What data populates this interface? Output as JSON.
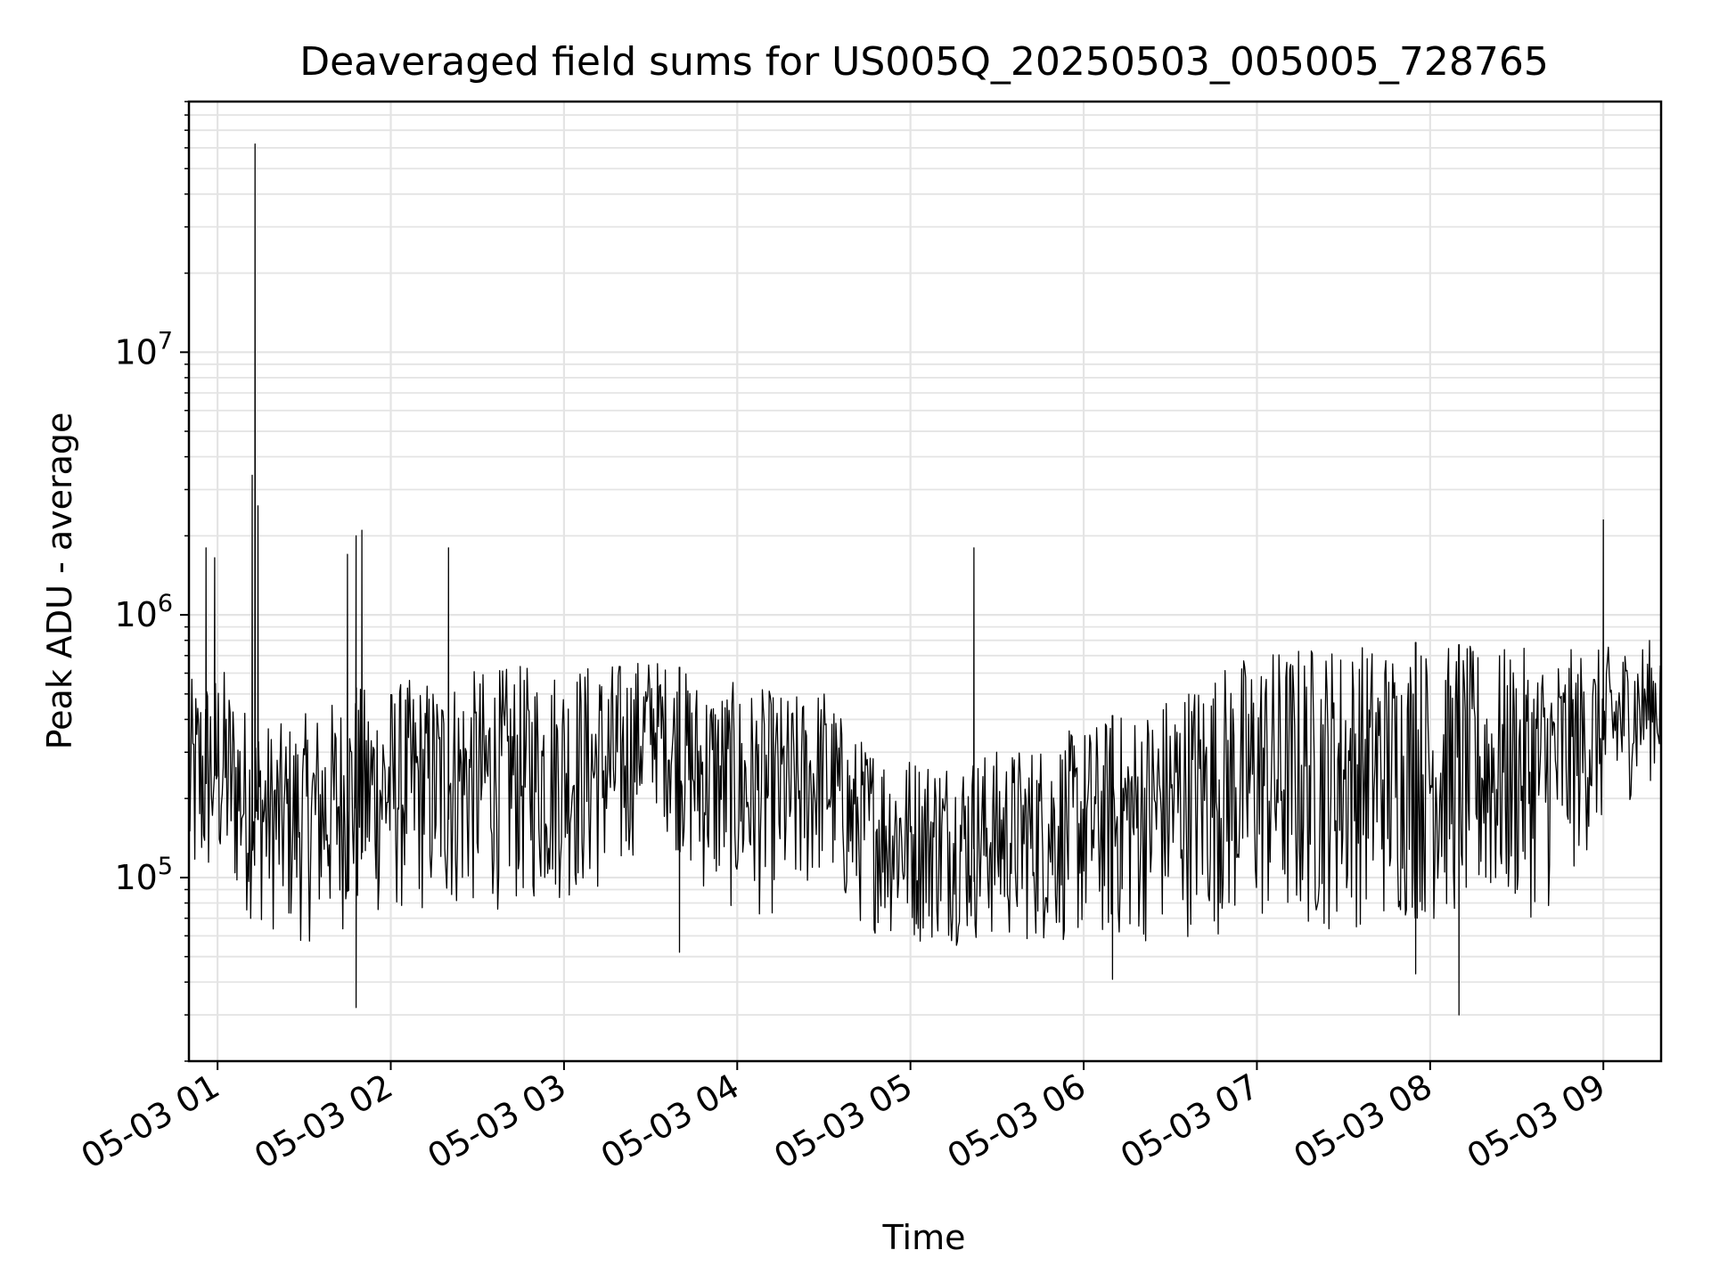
{
  "chart_data": {
    "type": "line",
    "title": "Deaveraged field sums for US005Q_20250503_005005_728765",
    "xlabel": "Time",
    "ylabel": "Peak ADU - average",
    "x_axis": {
      "kind": "datetime",
      "range": [
        "2025-05-03T00:50:05",
        "2025-05-03T09:20:00"
      ],
      "ticks": [
        "2025-05-03T01:00",
        "2025-05-03T02:00",
        "2025-05-03T03:00",
        "2025-05-03T04:00",
        "2025-05-03T05:00",
        "2025-05-03T06:00",
        "2025-05-03T07:00",
        "2025-05-03T08:00",
        "2025-05-03T09:00"
      ],
      "tick_labels": [
        "05-03 01",
        "05-03 02",
        "05-03 03",
        "05-03 04",
        "05-03 05",
        "05-03 06",
        "05-03 07",
        "05-03 08",
        "05-03 09"
      ],
      "tick_rotation_deg": 30
    },
    "y_axis": {
      "scale": "log",
      "range": [
        20000,
        90000000
      ],
      "major_ticks": [
        100000,
        1000000,
        10000000
      ],
      "tick_labels": [
        {
          "base": "10",
          "exp": "5"
        },
        {
          "base": "10",
          "exp": "6"
        },
        {
          "base": "10",
          "exp": "7"
        }
      ]
    },
    "grid": true,
    "legend": "none",
    "series": [
      {
        "color": "#000000",
        "envelope": [
          {
            "time": "2025-05-03T00:50:05",
            "low": 70000,
            "high": 560000
          },
          {
            "time": "2025-05-03T01:00:00",
            "low": 90000,
            "high": 700000
          },
          {
            "time": "2025-05-03T01:10:00",
            "low": 70000,
            "high": 450000
          },
          {
            "time": "2025-05-03T01:20:00",
            "low": 60000,
            "high": 380000
          },
          {
            "time": "2025-05-03T01:30:00",
            "low": 55000,
            "high": 420000
          },
          {
            "time": "2025-05-03T01:40:00",
            "low": 60000,
            "high": 480000
          },
          {
            "time": "2025-05-03T01:50:00",
            "low": 65000,
            "high": 540000
          },
          {
            "time": "2025-05-03T02:00:00",
            "low": 70000,
            "high": 560000
          },
          {
            "time": "2025-05-03T02:20:00",
            "low": 70000,
            "high": 600000
          },
          {
            "time": "2025-05-03T02:40:00",
            "low": 75000,
            "high": 640000
          },
          {
            "time": "2025-05-03T03:00:00",
            "low": 80000,
            "high": 660000
          },
          {
            "time": "2025-05-03T03:20:00",
            "low": 85000,
            "high": 680000
          },
          {
            "time": "2025-05-03T03:30:00",
            "low": 200000,
            "high": 700000
          },
          {
            "time": "2025-05-03T03:45:00",
            "low": 90000,
            "high": 600000
          },
          {
            "time": "2025-05-03T04:00:00",
            "low": 70000,
            "high": 550000
          },
          {
            "time": "2025-05-03T04:20:00",
            "low": 70000,
            "high": 500000
          },
          {
            "time": "2025-05-03T04:30:00",
            "low": 100000,
            "high": 550000
          },
          {
            "time": "2025-05-03T04:40:00",
            "low": 65000,
            "high": 350000
          },
          {
            "time": "2025-05-03T05:00:00",
            "low": 55000,
            "high": 300000
          },
          {
            "time": "2025-05-03T05:20:00",
            "low": 55000,
            "high": 300000
          },
          {
            "time": "2025-05-03T05:40:00",
            "low": 55000,
            "high": 320000
          },
          {
            "time": "2025-05-03T06:00:00",
            "low": 55000,
            "high": 380000
          },
          {
            "time": "2025-05-03T06:20:00",
            "low": 55000,
            "high": 450000
          },
          {
            "time": "2025-05-03T06:40:00",
            "low": 60000,
            "high": 600000
          },
          {
            "time": "2025-05-03T07:00:00",
            "low": 60000,
            "high": 750000
          },
          {
            "time": "2025-05-03T07:20:00",
            "low": 60000,
            "high": 800000
          },
          {
            "time": "2025-05-03T07:40:00",
            "low": 65000,
            "high": 800000
          },
          {
            "time": "2025-05-03T08:00:00",
            "low": 65000,
            "high": 780000
          },
          {
            "time": "2025-05-03T08:20:00",
            "low": 70000,
            "high": 760000
          },
          {
            "time": "2025-05-03T08:40:00",
            "low": 70000,
            "high": 740000
          },
          {
            "time": "2025-05-03T09:00:00",
            "low": 150000,
            "high": 750000
          },
          {
            "time": "2025-05-03T09:10:00",
            "low": 200000,
            "high": 800000
          },
          {
            "time": "2025-05-03T09:20:00",
            "low": 250000,
            "high": 820000
          }
        ],
        "spikes": [
          {
            "time": "2025-05-03T00:56:00",
            "value": 1800000
          },
          {
            "time": "2025-05-03T00:59:00",
            "value": 1650000
          },
          {
            "time": "2025-05-03T01:13:00",
            "value": 62000000
          },
          {
            "time": "2025-05-03T01:12:00",
            "value": 3400000
          },
          {
            "time": "2025-05-03T01:14:00",
            "value": 2600000
          },
          {
            "time": "2025-05-03T01:45:00",
            "value": 1700000
          },
          {
            "time": "2025-05-03T01:48:00",
            "value": 2000000
          },
          {
            "time": "2025-05-03T01:50:00",
            "value": 2100000
          },
          {
            "time": "2025-05-03T02:20:00",
            "value": 1800000
          },
          {
            "time": "2025-05-03T05:22:00",
            "value": 1800000
          },
          {
            "time": "2025-05-03T09:00:00",
            "value": 2300000
          }
        ],
        "dips": [
          {
            "time": "2025-05-03T01:48:00",
            "value": 32000
          },
          {
            "time": "2025-05-03T03:40:00",
            "value": 52000
          },
          {
            "time": "2025-05-03T06:10:00",
            "value": 41000
          },
          {
            "time": "2025-05-03T07:55:00",
            "value": 43000
          },
          {
            "time": "2025-05-03T08:10:00",
            "value": 30000
          }
        ]
      }
    ]
  }
}
